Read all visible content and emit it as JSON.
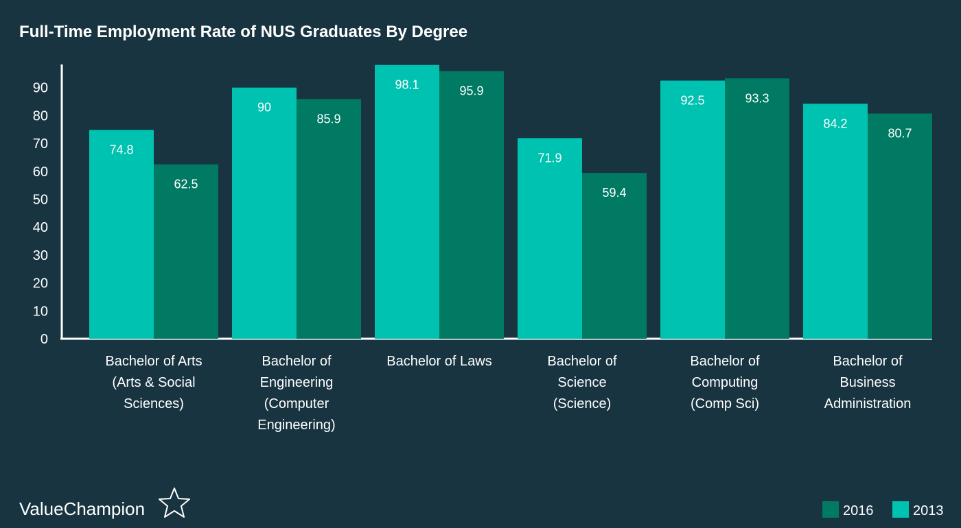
{
  "brand": {
    "name": "ValueChampion",
    "icon": "star-outline-icon"
  },
  "chart_data": {
    "type": "bar",
    "title": "Full-Time Employment Rate of NUS Graduates By Degree",
    "xlabel": "",
    "ylabel": "",
    "ylim": [
      0,
      100
    ],
    "yticks": [
      0,
      10,
      20,
      30,
      40,
      50,
      60,
      70,
      80,
      90
    ],
    "grid": false,
    "legend_position": "bottom-right",
    "categories": [
      [
        "Bachelor of Arts",
        "(Arts & Social",
        "Sciences)"
      ],
      [
        "Bachelor of",
        "Engineering",
        "(Computer",
        "Engineering)"
      ],
      [
        "Bachelor of Laws"
      ],
      [
        "Bachelor of",
        "Science",
        "(Science)"
      ],
      [
        "Bachelor of",
        "Computing",
        "(Comp Sci)"
      ],
      [
        "Bachelor of",
        "Business",
        "Administration"
      ]
    ],
    "series": [
      {
        "name": "2013",
        "color": "#00c2b1",
        "values": [
          74.8,
          90,
          98.1,
          71.9,
          92.5,
          84.2
        ]
      },
      {
        "name": "2016",
        "color": "#007a62",
        "values": [
          62.5,
          85.9,
          95.9,
          59.4,
          93.3,
          80.7
        ]
      }
    ],
    "legend": [
      {
        "name": "2016",
        "color": "#007a62"
      },
      {
        "name": "2013",
        "color": "#00c2b1"
      }
    ]
  }
}
